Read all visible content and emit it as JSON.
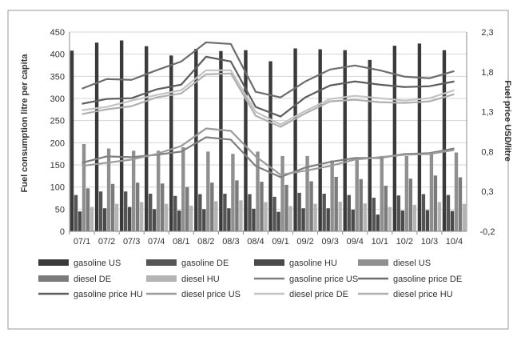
{
  "chart_data": {
    "type": "bar",
    "categories": [
      "07/1",
      "07/2",
      "07/3",
      "07/4",
      "08/1",
      "08/2",
      "08/3",
      "08/4",
      "09/1",
      "09/2",
      "09/3",
      "09/4",
      "10/1",
      "10/2",
      "10/3",
      "10/4"
    ],
    "ylabel": "Fuel consumption litre per capita",
    "y2label": "Fuel price USD/litre",
    "ylim": [
      0,
      450
    ],
    "y2lim": [
      -0.2,
      2.3
    ],
    "yticks": [
      "0",
      "50",
      "100",
      "150",
      "200",
      "250",
      "300",
      "350",
      "400",
      "450"
    ],
    "y2ticks": [
      "-0,2",
      "0,3",
      "0,8",
      "1,3",
      "1,8",
      "2,3"
    ],
    "grid": true,
    "legend_position": "bottom",
    "bar_series": [
      {
        "name": "gasoline US",
        "color": "#3a3a3a",
        "values": [
          408,
          426,
          431,
          418,
          397,
          412,
          407,
          409,
          384,
          413,
          411,
          409,
          387,
          419,
          424,
          409
        ]
      },
      {
        "name": "gasoline DE",
        "color": "#555555",
        "values": [
          82,
          90,
          90,
          85,
          80,
          84,
          85,
          84,
          78,
          87,
          85,
          82,
          76,
          81,
          84,
          82
        ]
      },
      {
        "name": "gasoline HU",
        "color": "#4a4a4a",
        "values": [
          45,
          52,
          55,
          50,
          47,
          50,
          52,
          51,
          44,
          52,
          52,
          49,
          38,
          47,
          48,
          46
        ]
      },
      {
        "name": "diesel US",
        "color": "#8f8f8f",
        "values": [
          197,
          187,
          182,
          182,
          190,
          180,
          175,
          180,
          170,
          170,
          160,
          165,
          170,
          170,
          175,
          178
        ]
      },
      {
        "name": "diesel DE",
        "color": "#7b7b7b",
        "values": [
          97,
          107,
          110,
          108,
          100,
          110,
          115,
          112,
          105,
          113,
          123,
          118,
          103,
          119,
          126,
          122
        ]
      },
      {
        "name": "diesel HU",
        "color": "#b4b4b4",
        "values": [
          55,
          62,
          66,
          62,
          58,
          68,
          70,
          66,
          57,
          62,
          67,
          63,
          55,
          60,
          66,
          62
        ]
      }
    ],
    "line_series": [
      {
        "name": "gasoline price US",
        "color": "#7f7f7f",
        "values": [
          0.66,
          0.74,
          0.73,
          0.76,
          0.8,
          0.98,
          0.95,
          0.62,
          0.48,
          0.6,
          0.67,
          0.72,
          0.72,
          0.77,
          0.78,
          0.84
        ]
      },
      {
        "name": "gasoline price DE",
        "color": "#6d6d6d",
        "values": [
          1.59,
          1.71,
          1.7,
          1.82,
          1.93,
          2.17,
          2.15,
          1.55,
          1.48,
          1.68,
          1.83,
          1.88,
          1.82,
          1.74,
          1.72,
          1.81
        ]
      },
      {
        "name": "gasoline price HU",
        "color": "#5e5e5e",
        "values": [
          1.4,
          1.46,
          1.47,
          1.58,
          1.64,
          1.99,
          1.93,
          1.36,
          1.24,
          1.48,
          1.63,
          1.68,
          1.64,
          1.61,
          1.62,
          1.68
        ]
      },
      {
        "name": "diesel price US",
        "color": "#9b9b9b",
        "values": [
          0.62,
          0.66,
          0.7,
          0.77,
          0.87,
          1.09,
          1.06,
          0.74,
          0.51,
          0.56,
          0.62,
          0.7,
          0.73,
          0.76,
          0.77,
          0.82
        ]
      },
      {
        "name": "diesel price DE",
        "color": "#c4c4c4",
        "values": [
          1.32,
          1.36,
          1.44,
          1.51,
          1.57,
          1.82,
          1.82,
          1.3,
          1.14,
          1.31,
          1.46,
          1.5,
          1.47,
          1.44,
          1.47,
          1.57
        ]
      },
      {
        "name": "diesel price HU",
        "color": "#b0b0b0",
        "values": [
          1.27,
          1.33,
          1.37,
          1.48,
          1.53,
          1.77,
          1.78,
          1.25,
          1.11,
          1.28,
          1.43,
          1.45,
          1.42,
          1.41,
          1.43,
          1.52
        ]
      }
    ],
    "legend": [
      "gasoline US",
      "gasoline DE",
      "gasoline HU",
      "diesel US",
      "diesel DE",
      "diesel HU",
      "gasoline price US",
      "gasoline price DE",
      "gasoline price HU",
      "diesel price US",
      "diesel price DE",
      "diesel price HU"
    ]
  }
}
